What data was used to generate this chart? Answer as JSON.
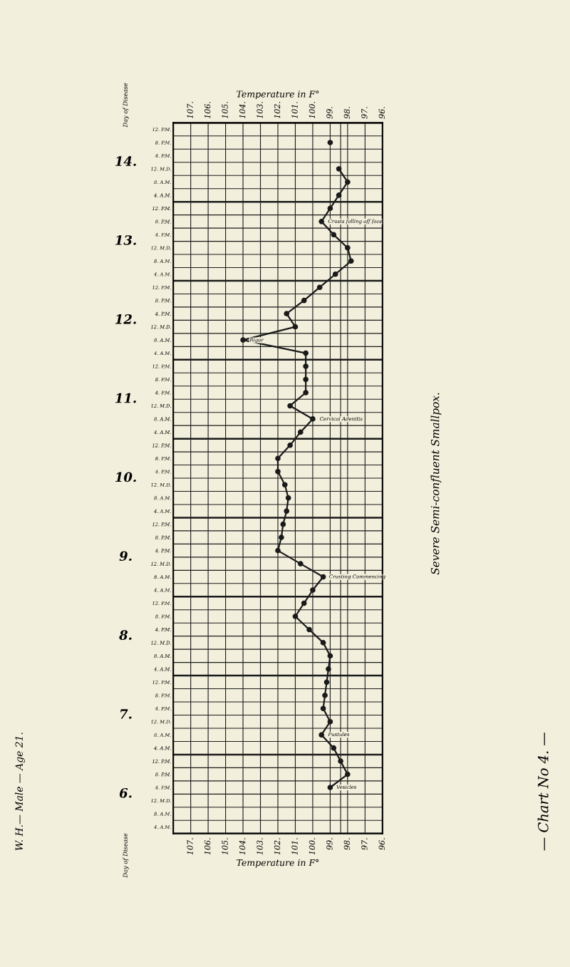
{
  "chart_data": {
    "type": "line",
    "orientation": "horizontal",
    "title": "Severe Semi-confluent Smallpox.",
    "subtitle": "W. H.— Male — Age 21.",
    "xlabel": "Temperature in F°",
    "x2label": "Temperature in F°",
    "categories": [
      "12. P.M.",
      "8. P.M.",
      "4. P.M.",
      "12. M.D.",
      "8. A.M.",
      "4. A.M.",
      "12. P.M.",
      "8. P.M.",
      "4. P.M.",
      "12. M.D.",
      "8. A.M.",
      "4. A.M.",
      "12. P.M.",
      "8. P.M.",
      "4. P.M.",
      "12. M.D.",
      "8. A.M.",
      "4. A.M.",
      "12. P.M.",
      "8. P.M.",
      "4. P.M.",
      "12. M.D.",
      "8. A.M.",
      "4. A.M.",
      "12. P.M.",
      "8. P.M.",
      "4. P.M.",
      "12. M.D.",
      "8. A.M.",
      "4. A.M.",
      "12. P.M.",
      "8. P.M.",
      "4. P.M.",
      "12. M.D.",
      "8. A.M.",
      "4. A.M.",
      "12. P.M.",
      "8. P.M.",
      "4. P.M.",
      "12. M.D.",
      "8. A.M.",
      "4. A.M.",
      "12. P.M.",
      "8. P.M.",
      "4. P.M.",
      "12. M.D.",
      "8. A.M.",
      "4. A.M.",
      "12. P.M.",
      "8. P.M.",
      "4. P.M.",
      "12. M.D.",
      "8. A.M.",
      "4. A.M."
    ],
    "series": [
      {
        "color": "#1a1a1a",
        "values": [
          null,
          99.0,
          null,
          98.5,
          98.0,
          98.5,
          99.0,
          99.5,
          98.8,
          98.0,
          97.8,
          98.7,
          99.6,
          100.5,
          101.5,
          101.0,
          104.0,
          100.4,
          100.4,
          100.4,
          100.4,
          101.3,
          100.0,
          100.7,
          101.3,
          102.0,
          102.0,
          101.6,
          101.4,
          101.5,
          101.7,
          101.8,
          102.0,
          100.7,
          99.4,
          100.0,
          100.5,
          101.0,
          100.2,
          99.4,
          99.0,
          99.1,
          99.2,
          99.3,
          99.4,
          99.0,
          99.5,
          98.8,
          98.4,
          98.0,
          99.0,
          null,
          null,
          null
        ]
      }
    ],
    "xlim": [
      108,
      96
    ],
    "xticks": [
      {
        "value": 107,
        "label": "107."
      },
      {
        "value": 106,
        "label": "106."
      },
      {
        "value": 105,
        "label": "105."
      },
      {
        "value": 104,
        "label": "104."
      },
      {
        "value": 103,
        "label": "103."
      },
      {
        "value": 102,
        "label": "102."
      },
      {
        "value": 101,
        "label": "101."
      },
      {
        "value": 100,
        "label": "100."
      },
      {
        "value": 99,
        "label": "99."
      },
      {
        "value": 98,
        "label": "98."
      },
      {
        "value": 97,
        "label": "97."
      },
      {
        "value": 96,
        "label": "96."
      }
    ],
    "x2lim": [
      108,
      96
    ],
    "x2ticks": [
      {
        "value": 107,
        "label": "107."
      },
      {
        "value": 106,
        "label": "106."
      },
      {
        "value": 105,
        "label": "105."
      },
      {
        "value": 104,
        "label": "104."
      },
      {
        "value": 103,
        "label": "103."
      },
      {
        "value": 102,
        "label": "102."
      },
      {
        "value": 101,
        "label": "101."
      },
      {
        "value": 100,
        "label": "100."
      },
      {
        "value": 99,
        "label": "99."
      },
      {
        "value": 98,
        "label": "98."
      },
      {
        "value": 97,
        "label": "97."
      },
      {
        "value": 96,
        "label": "96."
      }
    ],
    "ref_lines": [
      {
        "axis": "x",
        "value": 98.4,
        "color": "#1a1a1a"
      }
    ],
    "grid": true,
    "marker": "circle",
    "line_style": "solid",
    "annotations": [
      "14.",
      "13.",
      "12.",
      "11.",
      "10.",
      "9.",
      "8.",
      "7.",
      "6.",
      "Day of Disease",
      "Day of Disease",
      "Vesicles",
      "Pustules",
      "Crusting Commencing",
      "Cervical Adenitis",
      "Rigor",
      "Crusts falling off face",
      "— Chart No 4. —"
    ]
  }
}
